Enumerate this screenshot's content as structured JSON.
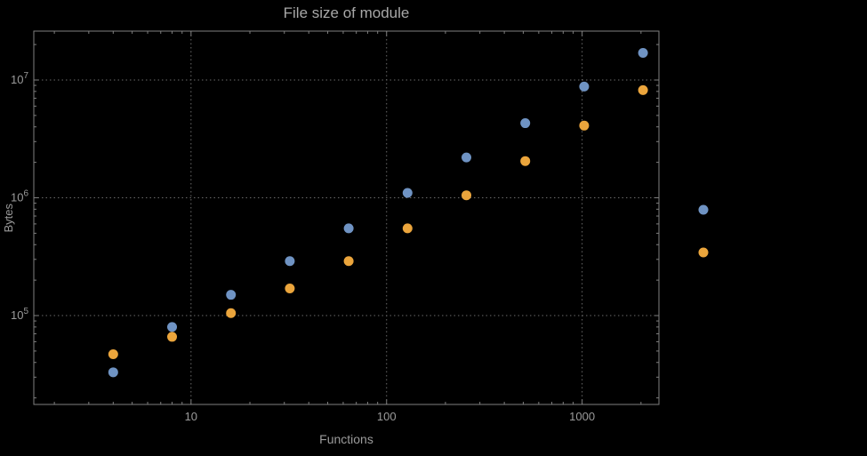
{
  "title": "File size of module",
  "axis": {
    "x_label": "Functions",
    "y_label": "Bytes"
  },
  "style": {
    "background": "#000000",
    "frame": "#7f7f7f",
    "grid": "#6a6a6a",
    "text": "#9b9b9b",
    "title_color": "#a8a8a8",
    "series1_color": "#6F93C3",
    "series2_color": "#EBA53C"
  },
  "chart_data": {
    "type": "scatter",
    "title": "File size of module",
    "xlabel": "Functions",
    "ylabel": "Bytes",
    "x_scale": "log",
    "y_scale": "log",
    "xlim": [
      1.57,
      2470
    ],
    "ylim": [
      17600,
      26000000
    ],
    "grid": {
      "style": "dotted",
      "x_values": [
        10,
        100,
        1000
      ],
      "y_values": [
        100000,
        1000000,
        10000000
      ]
    },
    "x_ticks": [
      {
        "value": 10,
        "label": "10"
      },
      {
        "value": 100,
        "label": "100"
      },
      {
        "value": 1000,
        "label": "1000"
      }
    ],
    "y_ticks": [
      {
        "value": 100000,
        "base": "10",
        "exp": "5"
      },
      {
        "value": 1000000,
        "base": "10",
        "exp": "6"
      },
      {
        "value": 10000000,
        "base": "10",
        "exp": "7"
      }
    ],
    "x": [
      4,
      8,
      16,
      32,
      64,
      128,
      256,
      512,
      1024,
      2048
    ],
    "series": [
      {
        "name": "series-1-blue",
        "color": "#6F93C3",
        "values": [
          33000,
          80000,
          150000,
          290000,
          550000,
          1100000,
          2200000,
          4300000,
          8800000,
          17000000
        ]
      },
      {
        "name": "series-2-orange",
        "color": "#EBA53C",
        "values": [
          47000,
          66000,
          105000,
          170000,
          290000,
          550000,
          1050000,
          2050000,
          4100000,
          8200000
        ]
      }
    ],
    "legend": {
      "position": "right-outside",
      "entries": [
        {
          "label": "",
          "color": "#6F93C3"
        },
        {
          "label": "",
          "color": "#EBA53C"
        }
      ]
    }
  }
}
